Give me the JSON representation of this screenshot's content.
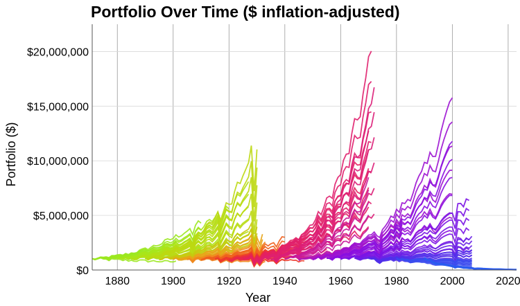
{
  "chart_data": {
    "type": "line",
    "title": "Portfolio Over Time ($ inflation-adjusted)",
    "xlabel": "Year",
    "ylabel": "Portfolio ($)",
    "xlim": [
      1871,
      2023
    ],
    "ylim": [
      0,
      22500000
    ],
    "x_ticks": [
      1880,
      1900,
      1920,
      1940,
      1960,
      1980,
      2000,
      2020
    ],
    "x_tick_labels": [
      "1880",
      "1900",
      "1920",
      "1940",
      "1960",
      "1980",
      "2000",
      "2020"
    ],
    "y_ticks": [
      0,
      5000000,
      10000000,
      15000000,
      20000000
    ],
    "y_tick_labels": [
      "$0",
      "$5,000,000",
      "$10,000,000",
      "$15,000,000",
      "$20,000,000"
    ],
    "grid": true,
    "legend": "none",
    "series_note_colors": [
      "#9be81f",
      "#f0a020",
      "#e8204a",
      "#e0206e",
      "#8a10e0",
      "#2a5cf0"
    ],
    "cohorts": [
      {
        "start": 1871,
        "duration": 30,
        "end_value": 2500000,
        "color": "#9be81f"
      },
      {
        "start": 1875,
        "duration": 35,
        "end_value": 4500000,
        "color": "#9be81f"
      },
      {
        "start": 1880,
        "duration": 40,
        "end_value": 6000000,
        "color": "#a8e61a"
      },
      {
        "start": 1885,
        "duration": 42,
        "end_value": 8200000,
        "color": "#b2e015"
      },
      {
        "start": 1890,
        "duration": 40,
        "end_value": 12000000,
        "color": "#bcd812"
      },
      {
        "start": 1895,
        "duration": 35,
        "end_value": 4300000,
        "color": "#c8c810"
      },
      {
        "start": 1900,
        "duration": 32,
        "end_value": 3500000,
        "color": "#e8a418"
      },
      {
        "start": 1905,
        "duration": 28,
        "end_value": 2500000,
        "color": "#f08a1e"
      },
      {
        "start": 1910,
        "duration": 30,
        "end_value": 3000000,
        "color": "#f0601e"
      },
      {
        "start": 1915,
        "duration": 32,
        "end_value": 2800000,
        "color": "#ec3a2c"
      },
      {
        "start": 1920,
        "duration": 35,
        "end_value": 4000000,
        "color": "#e8284a"
      },
      {
        "start": 1925,
        "duration": 45,
        "end_value": 12000000,
        "color": "#e42060"
      },
      {
        "start": 1930,
        "duration": 41,
        "end_value": 19800000,
        "color": "#e0206e"
      },
      {
        "start": 1935,
        "duration": 37,
        "end_value": 16200000,
        "color": "#dc1e78"
      },
      {
        "start": 1940,
        "duration": 30,
        "end_value": 8000000,
        "color": "#c81a9a"
      },
      {
        "start": 1945,
        "duration": 37,
        "end_value": 4500000,
        "color": "#b018b8"
      },
      {
        "start": 1950,
        "duration": 50,
        "end_value": 15800000,
        "color": "#9c12d2"
      },
      {
        "start": 1955,
        "duration": 45,
        "end_value": 11800000,
        "color": "#8a10e0"
      },
      {
        "start": 1960,
        "duration": 46,
        "end_value": 6700000,
        "color": "#7a14e4"
      },
      {
        "start": 1965,
        "duration": 42,
        "end_value": 3000000,
        "color": "#6a22e6"
      },
      {
        "start": 1970,
        "duration": 37,
        "end_value": 1800000,
        "color": "#5030ea"
      },
      {
        "start": 1980,
        "duration": 27,
        "end_value": 900000,
        "color": "#3a4cee"
      },
      {
        "start": 1990,
        "duration": 33,
        "end_value": 50000,
        "color": "#2a5cf0"
      }
    ]
  }
}
